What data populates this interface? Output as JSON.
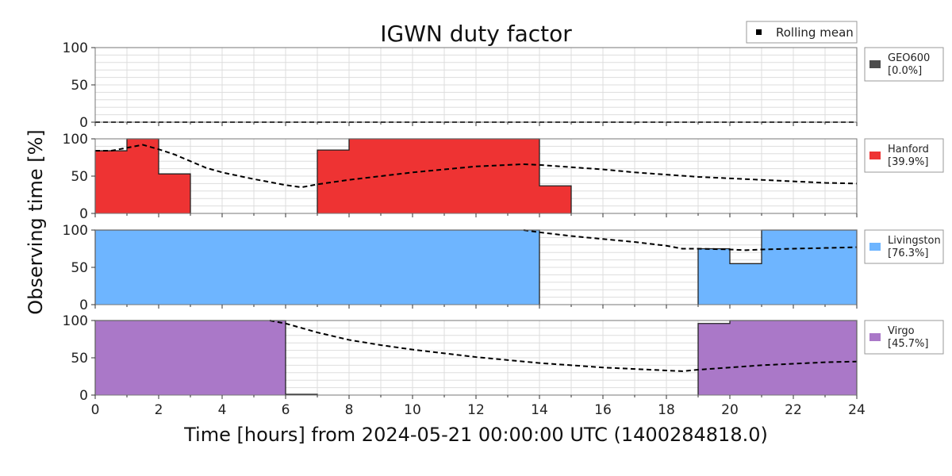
{
  "chart_data": {
    "type": "area",
    "title": "IGWN duty factor",
    "xlabel": "Time [hours] from 2024-05-21 00:00:00 UTC (1400284818.0)",
    "ylabel": "Observing time [%]",
    "xlim": [
      0,
      24
    ],
    "ylim": [
      0,
      100
    ],
    "x_ticks": [
      "0",
      "2",
      "4",
      "6",
      "8",
      "10",
      "12",
      "14",
      "16",
      "18",
      "20",
      "22",
      "24"
    ],
    "y_ticks": [
      "0",
      "50",
      "100"
    ],
    "grid": true,
    "mean_legend": "Rolling mean",
    "series": [
      {
        "name": "GEO600",
        "summary": "[0.0%]",
        "color": "#4d4d4d",
        "values": [
          0,
          0,
          0,
          0,
          0,
          0,
          0,
          0,
          0,
          0,
          0,
          0,
          0,
          0,
          0,
          0,
          0,
          0,
          0,
          0,
          0,
          0,
          0,
          0
        ],
        "rolling_mean": [
          [
            0,
            0
          ],
          [
            24,
            0
          ]
        ]
      },
      {
        "name": "Hanford",
        "summary": "[39.9%]",
        "color": "#ee3333",
        "values": [
          84,
          100,
          53,
          0,
          0,
          0,
          0,
          85,
          100,
          100,
          100,
          100,
          100,
          100,
          37,
          0,
          0,
          0,
          0,
          0,
          0,
          0,
          0,
          0
        ],
        "rolling_mean": [
          [
            0,
            84
          ],
          [
            0.5,
            84
          ],
          [
            1,
            88
          ],
          [
            1.5,
            92
          ],
          [
            2,
            86
          ],
          [
            2.5,
            79
          ],
          [
            3,
            70
          ],
          [
            3.5,
            61
          ],
          [
            4,
            55
          ],
          [
            5,
            46
          ],
          [
            6,
            38
          ],
          [
            6.5,
            35
          ],
          [
            7,
            39
          ],
          [
            8,
            45
          ],
          [
            9,
            50
          ],
          [
            10,
            55
          ],
          [
            11,
            59
          ],
          [
            12,
            63
          ],
          [
            13,
            65
          ],
          [
            13.5,
            66
          ],
          [
            14,
            65
          ],
          [
            15,
            62
          ],
          [
            16,
            59
          ],
          [
            17,
            55
          ],
          [
            18,
            52
          ],
          [
            19,
            49
          ],
          [
            20,
            47
          ],
          [
            21,
            45
          ],
          [
            22,
            43
          ],
          [
            23,
            41
          ],
          [
            24,
            40
          ]
        ]
      },
      {
        "name": "Livingston",
        "summary": "[76.3%]",
        "color": "#6eb5ff",
        "values": [
          100,
          100,
          100,
          100,
          100,
          100,
          100,
          100,
          100,
          100,
          100,
          100,
          100,
          100,
          0,
          0,
          0,
          0,
          0,
          75,
          55,
          100,
          100,
          100
        ],
        "rolling_mean": [
          [
            13.5,
            100
          ],
          [
            14,
            97
          ],
          [
            15,
            92
          ],
          [
            16,
            88
          ],
          [
            17,
            84
          ],
          [
            18,
            79
          ],
          [
            18.5,
            75
          ],
          [
            19,
            75
          ],
          [
            20,
            74
          ],
          [
            20.5,
            73
          ],
          [
            21,
            74
          ],
          [
            22,
            75
          ],
          [
            23,
            76
          ],
          [
            24,
            77
          ]
        ]
      },
      {
        "name": "Virgo",
        "summary": "[45.7%]",
        "color": "#aa78c8",
        "values": [
          100,
          100,
          100,
          100,
          100,
          100,
          1,
          0,
          0,
          0,
          0,
          0,
          0,
          0,
          0,
          0,
          0,
          0,
          0,
          96,
          100,
          100,
          100,
          100
        ],
        "rolling_mean": [
          [
            5.5,
            100
          ],
          [
            6,
            96
          ],
          [
            7,
            84
          ],
          [
            8,
            74
          ],
          [
            9,
            67
          ],
          [
            10,
            61
          ],
          [
            11,
            56
          ],
          [
            12,
            51
          ],
          [
            13,
            47
          ],
          [
            14,
            43
          ],
          [
            15,
            40
          ],
          [
            16,
            37
          ],
          [
            17,
            35
          ],
          [
            18,
            33
          ],
          [
            18.5,
            32
          ],
          [
            19,
            34
          ],
          [
            20,
            37
          ],
          [
            21,
            40
          ],
          [
            22,
            42
          ],
          [
            23,
            44
          ],
          [
            24,
            45
          ]
        ]
      }
    ]
  }
}
